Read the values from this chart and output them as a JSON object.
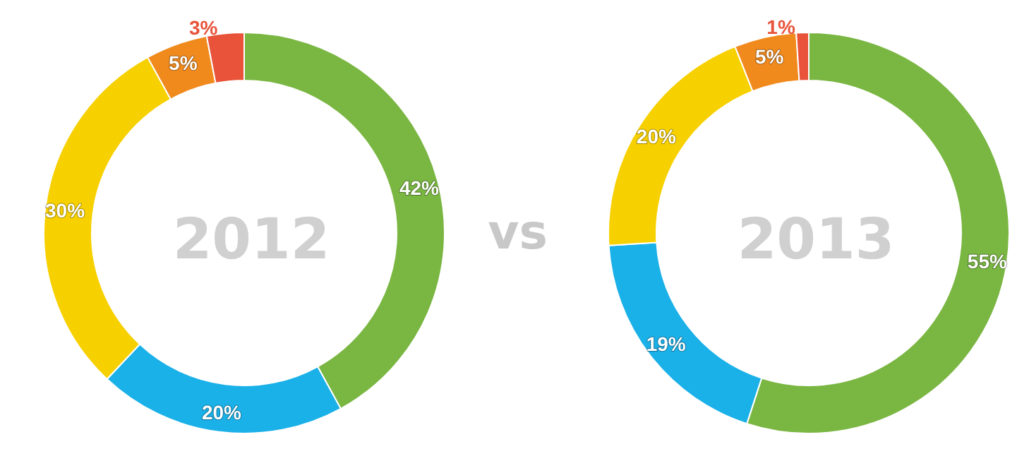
{
  "chart_data": [
    {
      "type": "donut",
      "title": "2012",
      "categories": [
        null,
        null,
        null,
        null,
        null
      ],
      "values": [
        42,
        20,
        30,
        5,
        3
      ],
      "value_labels": [
        "42%",
        "20%",
        "30%",
        "5%",
        "3%"
      ],
      "colors": [
        "#7ab642",
        "#1ab0e8",
        "#f7d000",
        "#f08a1d",
        "#e8533a"
      ],
      "annotations": [
        "vs"
      ]
    },
    {
      "type": "donut",
      "title": "2013",
      "categories": [
        null,
        null,
        null,
        null,
        null
      ],
      "values": [
        55,
        19,
        20,
        5,
        1
      ],
      "value_labels": [
        "55%",
        "19%",
        "20%",
        "5%",
        "1%"
      ],
      "colors": [
        "#7ab642",
        "#1ab0e8",
        "#f7d000",
        "#f08a1d",
        "#e8533a"
      ]
    }
  ]
}
